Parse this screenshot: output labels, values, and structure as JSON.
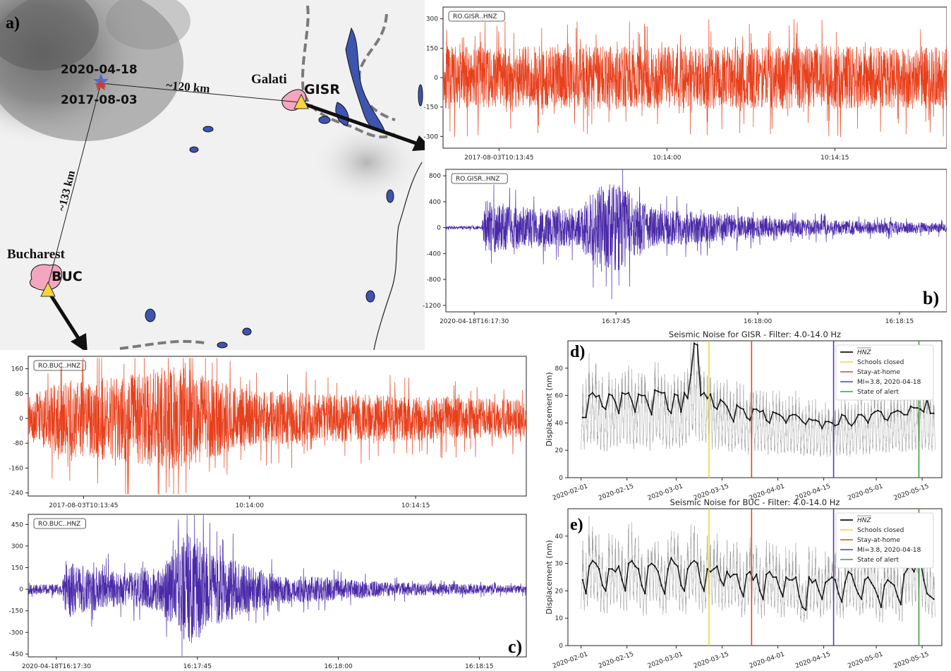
{
  "panel_labels": {
    "a": "a)",
    "b": "b)",
    "c": "c)",
    "d": "d)",
    "e": "e)"
  },
  "map": {
    "event_label_top": "2020-04-18",
    "event_label_bottom": "2017-08-03",
    "dist_east": "~120 km",
    "dist_south": "~133 km",
    "city_east": "Galati",
    "station_east": "GISR",
    "city_south": "Bucharest",
    "station_south": "BUC",
    "colors": {
      "event_2020": "#4a6fd1",
      "event_2017": "#d23b2a",
      "station": "#f5d53a",
      "city": "#f4a6c0",
      "lake": "#3e55b0",
      "border": "#7a7a7a"
    }
  },
  "chart_data": [
    {
      "id": "gisr_2017",
      "type": "line",
      "legend_label": "RO.GISR..HNZ",
      "color": "#e8401c",
      "ylim": [
        -360,
        360
      ],
      "yticks": [
        300,
        150,
        0,
        -150,
        -300
      ],
      "xlim": [
        0,
        45
      ],
      "xticks": [
        {
          "t": 5,
          "label": "2017-08-03T10:13:45"
        },
        {
          "t": 20,
          "label": "10:14:00"
        },
        {
          "t": 35,
          "label": "10:14:15"
        }
      ],
      "envelope": [
        {
          "t": 0,
          "amp": 160
        },
        {
          "t": 45,
          "amp": 160
        }
      ],
      "seed": 11
    },
    {
      "id": "gisr_2020",
      "type": "line",
      "legend_label": "RO.GISR..HNZ",
      "color": "#4b2aa8",
      "ylim": [
        -1300,
        900
      ],
      "yticks": [
        800,
        400,
        0,
        -400,
        -800,
        -1200
      ],
      "xlim": [
        0,
        53
      ],
      "xticks": [
        {
          "t": 3,
          "label": "2020-04-18T16:17:30"
        },
        {
          "t": 18,
          "label": "16:17:45"
        },
        {
          "t": 33,
          "label": "16:18:00"
        },
        {
          "t": 48,
          "label": "16:18:15"
        }
      ],
      "envelope": [
        {
          "t": 0,
          "amp": 25
        },
        {
          "t": 3.8,
          "amp": 25
        },
        {
          "t": 4.2,
          "amp": 420
        },
        {
          "t": 9,
          "amp": 300
        },
        {
          "t": 14,
          "amp": 300
        },
        {
          "t": 16.5,
          "amp": 700
        },
        {
          "t": 18.5,
          "amp": 650
        },
        {
          "t": 22,
          "amp": 300
        },
        {
          "t": 35,
          "amp": 140
        },
        {
          "t": 53,
          "amp": 70
        }
      ],
      "seed": 23
    },
    {
      "id": "buc_2017",
      "type": "line",
      "legend_label": "RO.BUC..HNZ",
      "color": "#e8401c",
      "ylim": [
        -250,
        200
      ],
      "yticks": [
        160,
        80,
        0,
        -80,
        -160,
        -240
      ],
      "xlim": [
        0,
        45
      ],
      "xticks": [
        {
          "t": 5,
          "label": "2017-08-03T10:13:45"
        },
        {
          "t": 20,
          "label": "10:14:00"
        },
        {
          "t": 35,
          "label": "10:14:15"
        }
      ],
      "envelope": [
        {
          "t": 0,
          "amp": 70
        },
        {
          "t": 3,
          "amp": 120
        },
        {
          "t": 9,
          "amp": 140
        },
        {
          "t": 13,
          "amp": 170
        },
        {
          "t": 20,
          "amp": 90
        },
        {
          "t": 45,
          "amp": 60
        }
      ],
      "seed": 37
    },
    {
      "id": "buc_2020",
      "type": "line",
      "legend_label": "RO.BUC..HNZ",
      "color": "#4b2aa8",
      "ylim": [
        -470,
        520
      ],
      "yticks": [
        450,
        300,
        150,
        0,
        -150,
        -300,
        -450
      ],
      "xlim": [
        0,
        53
      ],
      "xticks": [
        {
          "t": 3,
          "label": "2020-04-18T16:17:30"
        },
        {
          "t": 18,
          "label": "16:17:45"
        },
        {
          "t": 33,
          "label": "16:18:00"
        },
        {
          "t": 48,
          "label": "16:18:15"
        }
      ],
      "envelope": [
        {
          "t": 0,
          "amp": 35
        },
        {
          "t": 3.6,
          "amp": 35
        },
        {
          "t": 4,
          "amp": 200
        },
        {
          "t": 10,
          "amp": 110
        },
        {
          "t": 14,
          "amp": 150
        },
        {
          "t": 17,
          "amp": 400
        },
        {
          "t": 20,
          "amp": 250
        },
        {
          "t": 26,
          "amp": 110
        },
        {
          "t": 38,
          "amp": 50
        },
        {
          "t": 53,
          "amp": 25
        }
      ],
      "seed": 53
    },
    {
      "id": "gisr_noise",
      "type": "line",
      "title": "Seismic Noise for GISR - Filter: 4.0-14.0 Hz",
      "ylabel": "Displacement (nm)",
      "ylim": [
        0,
        100
      ],
      "yticks": [
        0,
        20,
        40,
        60,
        80
      ],
      "xlim": [
        "2020-01-28",
        "2020-05-21"
      ],
      "xticks": [
        "2020-02-01",
        "2020-02-15",
        "2020-03-01",
        "2020-03-15",
        "2020-04-01",
        "2020-04-15",
        "2020-05-01",
        "2020-05-15"
      ],
      "legend": [
        "HNZ",
        "Schools closed",
        "Stay-at-home",
        "MI=3.8, 2020-04-18",
        "State of alert"
      ],
      "events": [
        {
          "date": "2020-03-11",
          "color": "#e8d83a"
        },
        {
          "date": "2020-03-24",
          "color": "#d24a2a"
        },
        {
          "date": "2020-04-18",
          "color": "#5a3aa8"
        },
        {
          "date": "2020-05-14",
          "color": "#3aa03a"
        }
      ],
      "daily_start": "2020-02-01",
      "daily_median": [
        44,
        44,
        60,
        62,
        59,
        60,
        52,
        50,
        61,
        60,
        55,
        47,
        62,
        61,
        62,
        56,
        48,
        61,
        60,
        60,
        53,
        46,
        64,
        63,
        62,
        62,
        50,
        47,
        61,
        60,
        48,
        62,
        58,
        75,
        98,
        97,
        60,
        62,
        58,
        61,
        52,
        50,
        57,
        55,
        52,
        46,
        41,
        53,
        51,
        50,
        44,
        42,
        50,
        50,
        48,
        49,
        42,
        40,
        48,
        47,
        46,
        44,
        40,
        45,
        46,
        46,
        44,
        41,
        39,
        43,
        42,
        42,
        41,
        36,
        41,
        41,
        40,
        38,
        39,
        46,
        45,
        40,
        38,
        41,
        46,
        46,
        44,
        40,
        46,
        48,
        49,
        48,
        43,
        42,
        47,
        48,
        49,
        48,
        46,
        46,
        52,
        51,
        51,
        50,
        48,
        58,
        47,
        47
      ],
      "daily_high": [
        60,
        63,
        80,
        70,
        78,
        62,
        66,
        59,
        69,
        63,
        64,
        66,
        69,
        70,
        71,
        69,
        66,
        68,
        70,
        72,
        69,
        66,
        82,
        76,
        70,
        68,
        64,
        66,
        70,
        68,
        66,
        72,
        78,
        86,
        100,
        100,
        73,
        72,
        66,
        69,
        64,
        63,
        67,
        64,
        64,
        60,
        55,
        62,
        60,
        59,
        56,
        54,
        59,
        58,
        57,
        57,
        54,
        51,
        56,
        55,
        56,
        54,
        51,
        54,
        55,
        55,
        53,
        50,
        48,
        51,
        50,
        50,
        49,
        46,
        49,
        49,
        48,
        47,
        48,
        53,
        53,
        49,
        47,
        50,
        54,
        54,
        53,
        49,
        54,
        56,
        57,
        56,
        52,
        51,
        55,
        56,
        57,
        56,
        55,
        55,
        60,
        59,
        59,
        58,
        57,
        66,
        55,
        55
      ],
      "daily_low": [
        12,
        11,
        15,
        14,
        13,
        12,
        10,
        9,
        14,
        13,
        12,
        9,
        15,
        14,
        14,
        12,
        9,
        14,
        13,
        13,
        11,
        9,
        15,
        14,
        14,
        13,
        10,
        9,
        14,
        13,
        10,
        14,
        13,
        14,
        16,
        15,
        14,
        14,
        13,
        14,
        11,
        10,
        12,
        12,
        11,
        9,
        8,
        11,
        11,
        10,
        9,
        8,
        10,
        10,
        10,
        10,
        8,
        8,
        10,
        10,
        9,
        9,
        8,
        9,
        9,
        9,
        9,
        8,
        7,
        8,
        8,
        8,
        8,
        7,
        8,
        8,
        8,
        8,
        8,
        9,
        9,
        8,
        8,
        8,
        9,
        9,
        9,
        8,
        9,
        10,
        10,
        10,
        9,
        9,
        10,
        10,
        10,
        10,
        10,
        10,
        11,
        11,
        11,
        11,
        10,
        12,
        10,
        10
      ]
    },
    {
      "id": "buc_noise",
      "type": "line",
      "title": "Seismic Noise for BUC - Filter: 4.0-14.0 Hz",
      "ylabel": "Displacement (nm)",
      "ylim": [
        0,
        50
      ],
      "yticks": [
        0,
        10,
        20,
        30,
        40
      ],
      "xlim": [
        "2020-01-28",
        "2020-05-21"
      ],
      "xticks": [
        "2020-02-01",
        "2020-02-15",
        "2020-03-01",
        "2020-03-15",
        "2020-04-01",
        "2020-04-15",
        "2020-05-01",
        "2020-05-15"
      ],
      "legend": [
        "HNZ",
        "Schools closed",
        "Stay-at-home",
        "MI=3.8, 2020-04-18",
        "State of alert"
      ],
      "events": [
        {
          "date": "2020-03-11",
          "color": "#e8d83a"
        },
        {
          "date": "2020-03-24",
          "color": "#d24a2a"
        },
        {
          "date": "2020-04-18",
          "color": "#5a3aa8"
        },
        {
          "date": "2020-05-14",
          "color": "#3aa03a"
        }
      ],
      "daily_start": "2020-02-01",
      "daily_median": [
        24,
        19,
        29,
        31,
        30,
        28,
        22,
        20,
        28,
        28,
        27,
        29,
        24,
        20,
        30,
        31,
        29,
        28,
        22,
        19,
        29,
        30,
        29,
        27,
        22,
        19,
        28,
        32,
        30,
        29,
        22,
        20,
        28,
        30,
        31,
        30,
        23,
        20,
        28,
        27,
        28,
        29,
        24,
        22,
        27,
        25,
        26,
        26,
        21,
        18,
        26,
        27,
        24,
        26,
        20,
        17,
        26,
        27,
        25,
        25,
        21,
        18,
        25,
        24,
        24,
        25,
        18,
        14,
        13,
        25,
        23,
        24,
        20,
        17,
        23,
        24,
        25,
        24,
        19,
        16,
        23,
        27,
        26,
        22,
        19,
        17,
        24,
        25,
        23,
        21,
        18,
        14,
        22,
        24,
        23,
        22,
        18,
        15,
        26,
        28,
        29,
        27,
        30,
        31,
        24,
        19,
        18,
        17
      ],
      "daily_high": [
        34,
        30,
        42,
        40,
        38,
        36,
        31,
        30,
        37,
        36,
        35,
        37,
        33,
        29,
        39,
        40,
        38,
        36,
        31,
        28,
        38,
        39,
        37,
        35,
        31,
        28,
        36,
        41,
        39,
        38,
        31,
        29,
        37,
        39,
        40,
        38,
        32,
        29,
        36,
        35,
        36,
        37,
        33,
        31,
        35,
        33,
        34,
        34,
        30,
        27,
        34,
        35,
        32,
        34,
        29,
        26,
        34,
        35,
        33,
        33,
        30,
        27,
        33,
        32,
        32,
        33,
        27,
        23,
        22,
        33,
        31,
        32,
        29,
        26,
        31,
        32,
        33,
        32,
        28,
        25,
        31,
        35,
        34,
        30,
        28,
        26,
        32,
        33,
        31,
        29,
        27,
        23,
        30,
        32,
        31,
        30,
        27,
        24,
        34,
        36,
        37,
        35,
        38,
        40,
        32,
        28,
        27,
        26
      ],
      "daily_low": [
        9,
        8,
        11,
        12,
        11,
        10,
        8,
        7,
        10,
        10,
        10,
        11,
        9,
        7,
        11,
        12,
        11,
        10,
        8,
        7,
        11,
        11,
        11,
        10,
        8,
        7,
        10,
        12,
        11,
        11,
        8,
        7,
        10,
        11,
        12,
        11,
        8,
        7,
        10,
        10,
        10,
        11,
        9,
        8,
        10,
        9,
        10,
        10,
        8,
        6,
        10,
        10,
        9,
        10,
        7,
        6,
        10,
        10,
        9,
        9,
        8,
        6,
        9,
        9,
        9,
        9,
        6,
        5,
        5,
        9,
        8,
        9,
        7,
        6,
        8,
        9,
        9,
        9,
        7,
        6,
        8,
        10,
        10,
        8,
        7,
        6,
        9,
        9,
        8,
        8,
        6,
        5,
        8,
        9,
        8,
        8,
        6,
        5,
        10,
        10,
        11,
        10,
        11,
        12,
        9,
        7,
        7,
        6
      ]
    }
  ]
}
